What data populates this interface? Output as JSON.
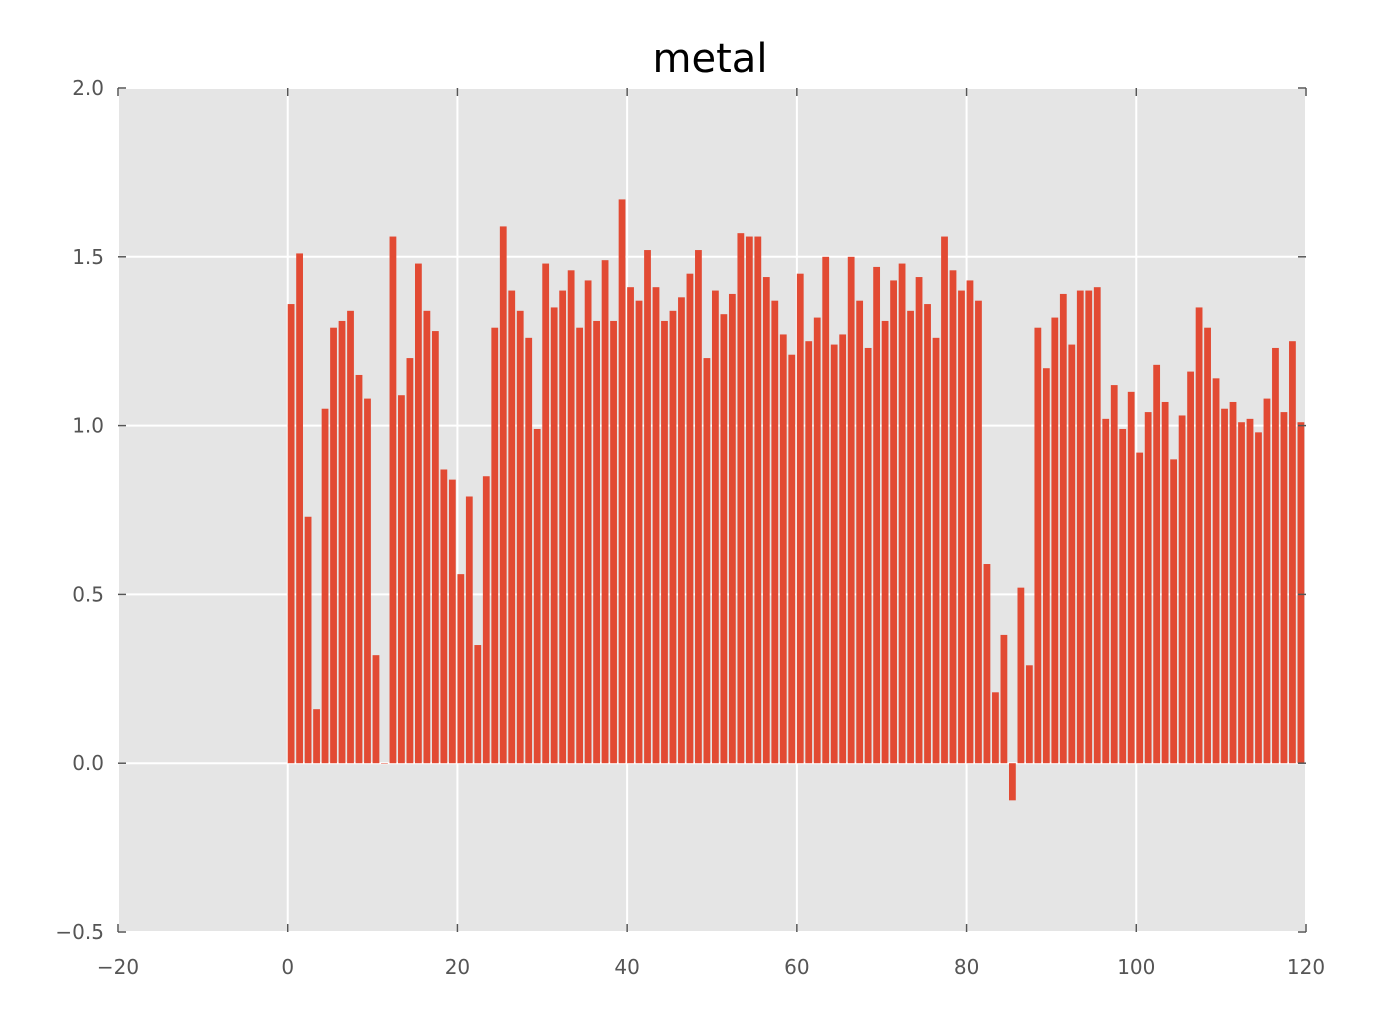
{
  "chart_data": {
    "type": "bar",
    "title": "metal",
    "xlabel": "",
    "ylabel": "",
    "xlim": [
      -20,
      120
    ],
    "ylim": [
      -0.5,
      2.0
    ],
    "xticks": [
      -20,
      0,
      20,
      40,
      60,
      80,
      100,
      120
    ],
    "yticks": [
      -0.5,
      0.0,
      0.5,
      1.0,
      1.5,
      2.0
    ],
    "xtick_labels": [
      "−20",
      "0",
      "20",
      "40",
      "60",
      "80",
      "100",
      "120"
    ],
    "ytick_labels": [
      "−0.5",
      "0.0",
      "0.5",
      "1.0",
      "1.5",
      "2.0"
    ],
    "grid": true,
    "bar_color": "#E24A33",
    "background_color": "#E5E5E5",
    "grid_color": "#FFFFFF",
    "x": [
      0,
      1,
      2,
      3,
      4,
      5,
      6,
      7,
      8,
      9,
      10,
      11,
      12,
      13,
      14,
      15,
      16,
      17,
      18,
      19,
      20,
      21,
      22,
      23,
      24,
      25,
      26,
      27,
      28,
      29,
      30,
      31,
      32,
      33,
      34,
      35,
      36,
      37,
      38,
      39,
      40,
      41,
      42,
      43,
      44,
      45,
      46,
      47,
      48,
      49,
      50,
      51,
      52,
      53,
      54,
      55,
      56,
      57,
      58,
      59,
      60,
      61,
      62,
      63,
      64,
      65,
      66,
      67,
      68,
      69,
      70,
      71,
      72,
      73,
      74,
      75,
      76,
      77,
      78,
      79,
      80,
      81,
      82,
      83,
      84,
      85,
      86,
      87,
      88,
      89,
      90,
      91,
      92,
      93,
      94,
      95,
      96,
      97,
      98,
      99,
      100,
      101,
      102,
      103,
      104,
      105,
      106,
      107,
      108,
      109,
      110,
      111,
      112,
      113,
      114,
      115,
      116,
      117,
      118,
      119
    ],
    "values": [
      1.36,
      1.51,
      0.73,
      0.16,
      1.05,
      1.29,
      1.31,
      1.34,
      1.15,
      1.08,
      0.32,
      0.0,
      1.56,
      1.09,
      1.2,
      1.48,
      1.34,
      1.28,
      0.87,
      0.84,
      0.56,
      0.79,
      0.35,
      0.85,
      1.29,
      1.59,
      1.4,
      1.34,
      1.26,
      0.99,
      1.48,
      1.35,
      1.4,
      1.46,
      1.29,
      1.43,
      1.31,
      1.49,
      1.31,
      1.67,
      1.41,
      1.37,
      1.52,
      1.41,
      1.31,
      1.34,
      1.38,
      1.45,
      1.52,
      1.2,
      1.4,
      1.33,
      1.39,
      1.57,
      1.56,
      1.56,
      1.44,
      1.37,
      1.27,
      1.21,
      1.45,
      1.25,
      1.32,
      1.5,
      1.24,
      1.27,
      1.5,
      1.37,
      1.23,
      1.47,
      1.31,
      1.43,
      1.48,
      1.34,
      1.44,
      1.36,
      1.26,
      1.56,
      1.46,
      1.4,
      1.43,
      1.37,
      0.59,
      0.21,
      0.38,
      -0.11,
      0.52,
      0.29,
      1.29,
      1.17,
      1.32,
      1.39,
      1.24,
      1.4,
      1.4,
      1.41,
      1.02,
      1.12,
      0.99,
      1.1,
      0.92,
      1.04,
      1.18,
      1.07,
      0.9,
      1.03,
      1.16,
      1.35,
      1.29,
      1.14,
      1.05,
      1.07,
      1.01,
      1.02,
      0.98,
      1.08,
      1.23,
      1.04,
      1.25,
      1.01
    ]
  }
}
